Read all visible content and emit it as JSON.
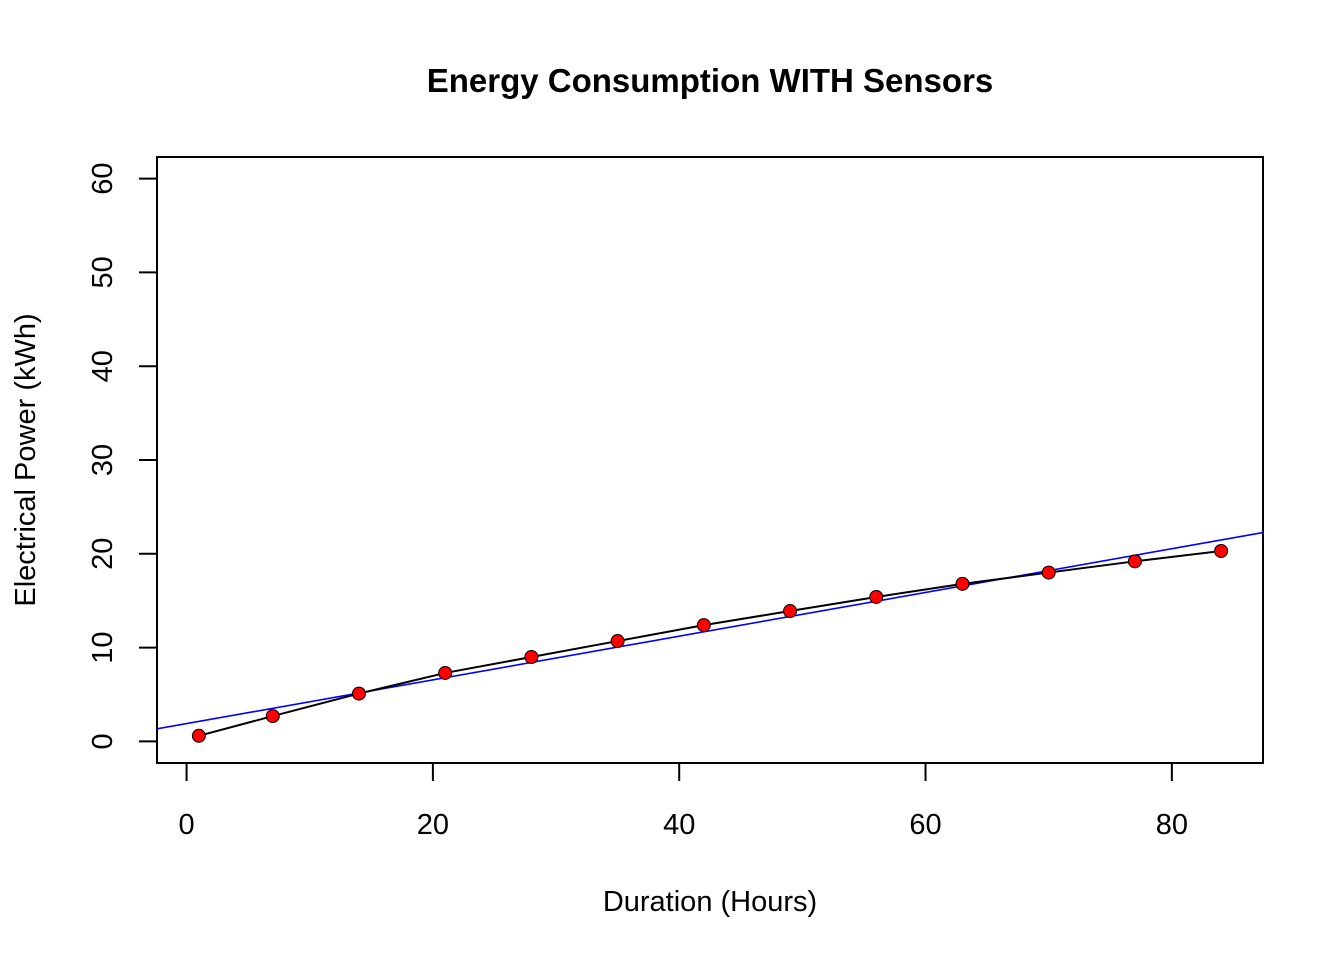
{
  "chart_data": {
    "type": "scatter",
    "title": "Energy Consumption WITH Sensors",
    "xlabel": "Duration (Hours)",
    "ylabel": "Electrical Power (kWh)",
    "xlim": [
      -2.4,
      87.4
    ],
    "ylim": [
      -2.3,
      62.3
    ],
    "x_ticks": [
      0,
      20,
      40,
      60,
      80
    ],
    "y_ticks": [
      0,
      10,
      20,
      30,
      40,
      50,
      60
    ],
    "x_tick_labels": [
      "0",
      "20",
      "40",
      "60",
      "80"
    ],
    "y_tick_labels": [
      "0",
      "10",
      "20",
      "30",
      "40",
      "50",
      "60"
    ],
    "grid": false,
    "legend": "none",
    "series": [
      {
        "x": [
          1,
          7,
          14,
          21,
          28,
          35,
          42,
          49,
          56,
          63,
          70,
          77,
          84
        ],
        "y": [
          0.6,
          2.7,
          5.1,
          7.3,
          9.0,
          10.7,
          12.4,
          13.9,
          15.4,
          16.8,
          18.0,
          19.2,
          20.3
        ],
        "marker": "filled-circle",
        "marker_color": "#ff0000",
        "connect_line": true,
        "line_color": "#000000"
      }
    ],
    "trend_line": {
      "type": "linear-fit",
      "intercept": 1.9,
      "slope": 0.233,
      "color": "#0000ff"
    },
    "colors": {
      "points": "#ff0000",
      "connector": "#000000",
      "trend": "#0000ff",
      "axes": "#000000",
      "background": "#ffffff"
    }
  }
}
